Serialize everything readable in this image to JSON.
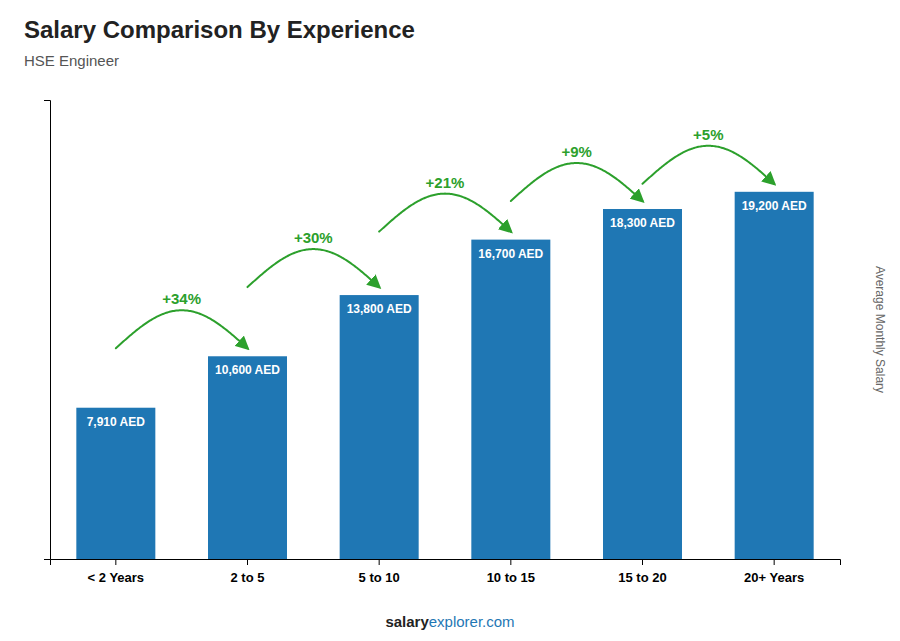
{
  "chart_data": {
    "type": "bar",
    "title": "Salary Comparison By Experience",
    "subtitle": "HSE Engineer",
    "ylabel": "Average Monthly Salary",
    "footer": [
      "salary",
      "explorer.com"
    ],
    "categories": [
      "< 2 Years",
      "2 to 5",
      "5 to 10",
      "10 to 15",
      "15 to 20",
      "20+ Years"
    ],
    "values": [
      7910,
      10600,
      13800,
      16700,
      18300,
      19200
    ],
    "value_labels": [
      "7,910 AED",
      "10,600 AED",
      "13,800 AED",
      "16,700 AED",
      "18,300 AED",
      "19,200 AED"
    ],
    "data_labels": true,
    "annotations": [
      "+34%",
      "+30%",
      "+21%",
      "+9%",
      "+5%"
    ],
    "ylim": [
      0,
      24000
    ],
    "tick_labels": "x",
    "grid": false
  }
}
